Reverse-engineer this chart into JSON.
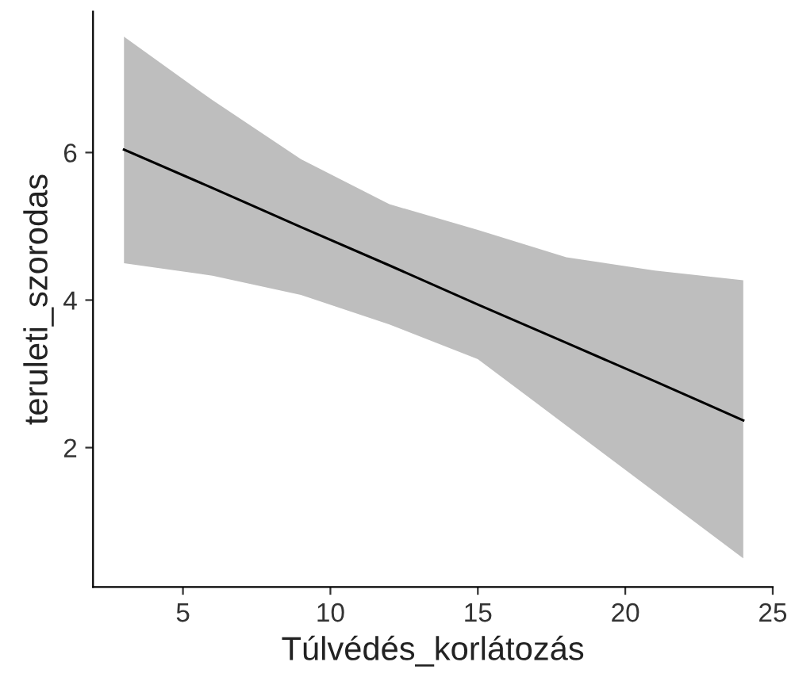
{
  "chart_data": {
    "type": "line",
    "xlabel": "Túlvédés_korlátozás",
    "ylabel": "teruleti_szorodas",
    "x": [
      3,
      6,
      9,
      12,
      15,
      18,
      21,
      24
    ],
    "series": [
      {
        "color": "#000000",
        "values": [
          6.04,
          5.52,
          4.99,
          4.47,
          3.94,
          3.42,
          2.9,
          2.37
        ],
        "lower": [
          4.5,
          4.33,
          4.07,
          3.67,
          3.2,
          2.3,
          1.4,
          0.5
        ],
        "upper": [
          7.57,
          6.71,
          5.91,
          5.3,
          4.95,
          4.58,
          4.4,
          4.27
        ]
      }
    ],
    "xlim": [
      1.95,
      25
    ],
    "ylim": [
      0.11,
      7.91
    ],
    "xticks": [
      5,
      10,
      15,
      20,
      25
    ],
    "yticks": [
      2,
      4,
      6
    ],
    "grid": false,
    "legend": false
  }
}
